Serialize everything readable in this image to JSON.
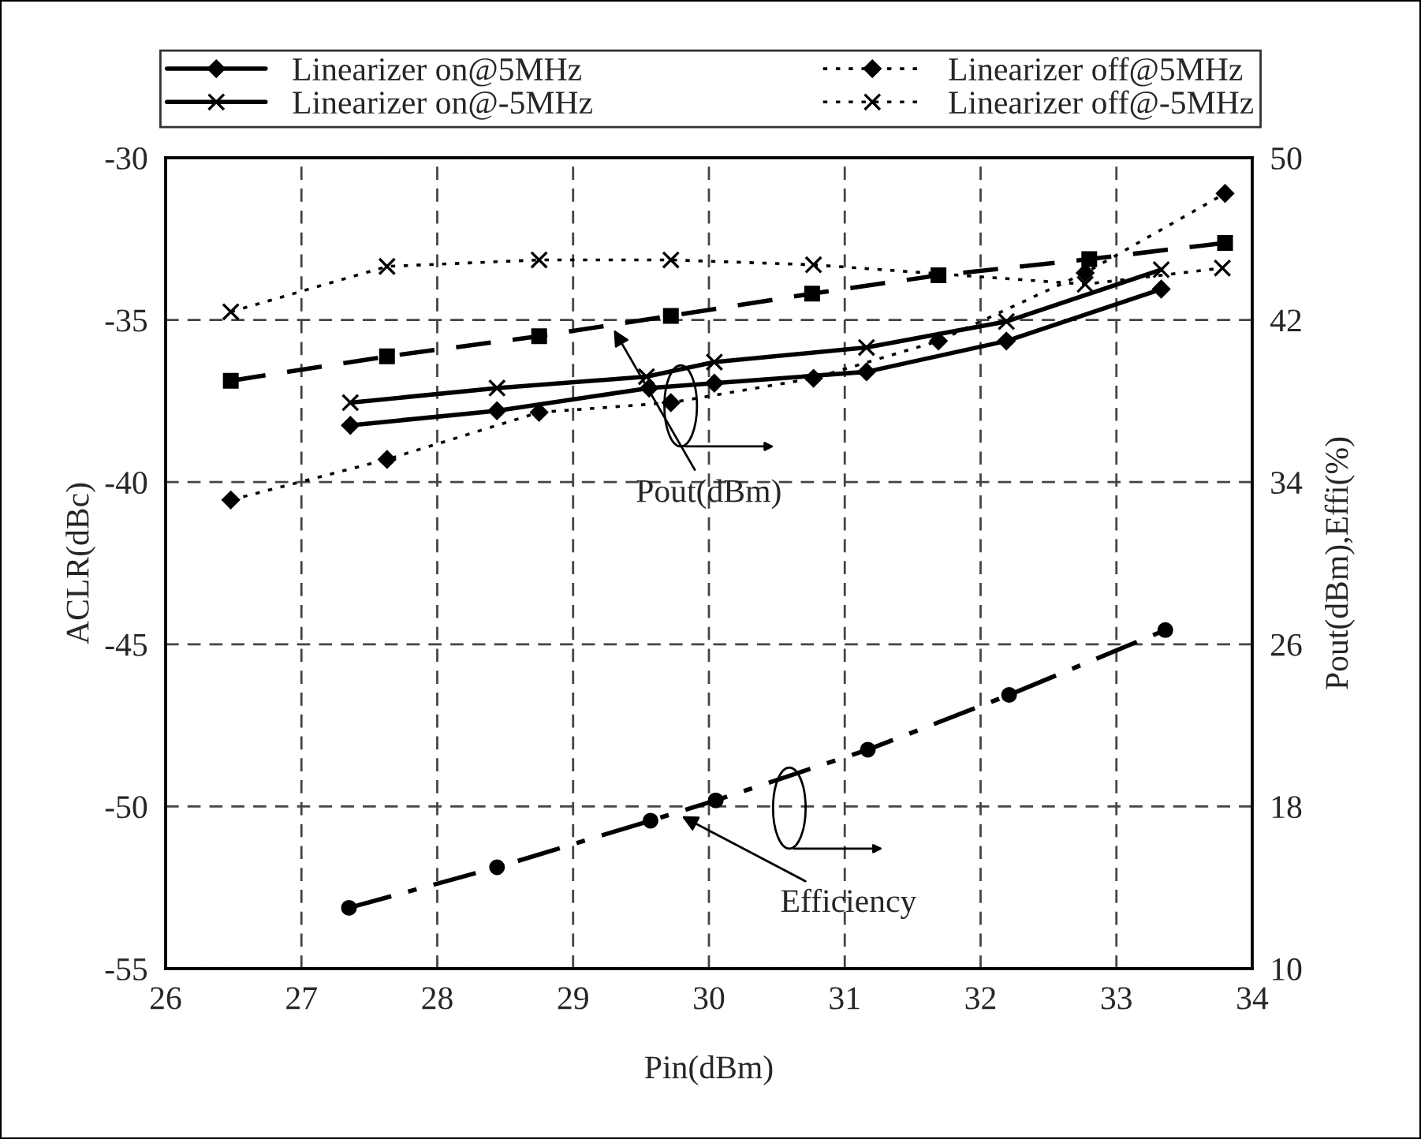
{
  "chart_data": {
    "type": "line",
    "xlabel": "Pin(dBm)",
    "ylabel": "ACLR(dBc)",
    "y2label": "Pout(dBm),Effi(%)",
    "xlim": [
      26,
      34
    ],
    "xticks": [
      26,
      27,
      28,
      29,
      30,
      31,
      32,
      33,
      34
    ],
    "ylim": [
      -55,
      -30
    ],
    "yticks": [
      -55,
      -50,
      -45,
      -40,
      -35,
      -30
    ],
    "y2lim": [
      10,
      50
    ],
    "y2ticks": [
      10,
      18,
      26,
      34,
      42,
      50
    ],
    "grid": true,
    "legend": "top",
    "series": [
      {
        "name": "Linearizer on@5MHz",
        "color": "#000000",
        "marker": "diamond",
        "line_style": "solid",
        "x": [
          27.36,
          28.44,
          29.56,
          30.04,
          31.16,
          32.19,
          33.33
        ],
        "values": [
          -38.25,
          -37.8,
          -37.1,
          -36.95,
          -36.6,
          -35.65,
          -34.05
        ]
      },
      {
        "name": "Linearizer on@-5MHz",
        "color": "#000000",
        "marker": "cross",
        "line_style": "solid",
        "x": [
          27.36,
          28.44,
          29.54,
          30.04,
          31.16,
          32.19,
          33.33
        ],
        "values": [
          -37.55,
          -37.1,
          -36.75,
          -36.3,
          -35.85,
          -35.05,
          -33.45
        ]
      },
      {
        "name": "Linearizer off@5MHz",
        "color": "#000000",
        "marker": "diamond",
        "line_style": "dotted",
        "x": [
          26.48,
          27.63,
          28.75,
          29.72,
          30.77,
          31.69,
          32.77,
          33.8
        ],
        "values": [
          -40.55,
          -39.3,
          -37.85,
          -37.55,
          -36.8,
          -35.65,
          -33.55,
          -31.1
        ]
      },
      {
        "name": "Linearizer off@-5MHz",
        "color": "#000000",
        "marker": "cross",
        "line_style": "dotted",
        "x": [
          26.48,
          27.63,
          28.75,
          29.72,
          30.77,
          32.77,
          33.78
        ],
        "values": [
          -34.75,
          -33.35,
          -33.15,
          -33.15,
          -33.3,
          -33.9,
          -33.4
        ]
      },
      {
        "color": "#000000",
        "marker": "square",
        "line_style": "dashed",
        "axis": "y2",
        "x": [
          26.48,
          27.63,
          28.75,
          29.72,
          30.76,
          31.69,
          32.8,
          33.8
        ],
        "values": [
          39.0,
          40.2,
          41.2,
          42.2,
          43.3,
          44.2,
          45.0,
          45.8
        ]
      },
      {
        "color": "#000000",
        "marker": "circle",
        "line_style": "dashdot",
        "axis": "y2",
        "x": [
          27.35,
          28.44,
          29.57,
          30.05,
          31.17,
          32.21,
          33.36
        ],
        "values": [
          13.0,
          15.0,
          17.3,
          18.3,
          20.8,
          23.5,
          26.7
        ]
      }
    ],
    "annotations": [
      {
        "text": "Pout(dBm)",
        "x": 29.3,
        "y": -35.3
      },
      {
        "text": "Efficiency",
        "x": 29.8,
        "y": -50.3
      }
    ]
  }
}
